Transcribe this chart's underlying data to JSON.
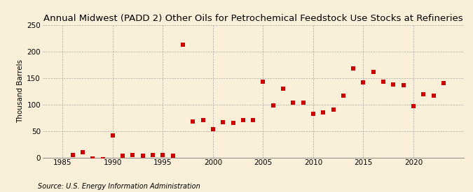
{
  "title": "Annual Midwest (PADD 2) Other Oils for Petrochemical Feedstock Use Stocks at Refineries",
  "ylabel": "Thousand Barrels",
  "source": "Source: U.S. Energy Information Administration",
  "background_color": "#faefd8",
  "marker_color": "#cc0000",
  "years": [
    1986,
    1987,
    1988,
    1989,
    1990,
    1991,
    1992,
    1993,
    1994,
    1995,
    1996,
    1997,
    1998,
    1999,
    2000,
    2001,
    2002,
    2003,
    2004,
    2005,
    2006,
    2007,
    2008,
    2009,
    2010,
    2011,
    2012,
    2013,
    2014,
    2015,
    2016,
    2017,
    2018,
    2019,
    2020,
    2021,
    2022,
    2023
  ],
  "values": [
    5,
    10,
    -2,
    -3,
    42,
    3,
    5,
    3,
    5,
    4,
    3,
    213,
    68,
    70,
    53,
    67,
    65,
    70,
    70,
    143,
    98,
    130,
    103,
    103,
    82,
    85,
    90,
    117,
    168,
    141,
    162,
    143,
    138,
    136,
    97,
    119,
    117,
    140
  ],
  "ylim": [
    0,
    250
  ],
  "xlim": [
    1983,
    2025
  ],
  "yticks": [
    0,
    50,
    100,
    150,
    200,
    250
  ],
  "xticks": [
    1985,
    1990,
    1995,
    2000,
    2005,
    2010,
    2015,
    2020
  ],
  "grid_color": "#aaaaaa",
  "title_fontsize": 9.5,
  "label_fontsize": 7.5,
  "tick_fontsize": 7.5,
  "source_fontsize": 7,
  "marker_size": 4
}
